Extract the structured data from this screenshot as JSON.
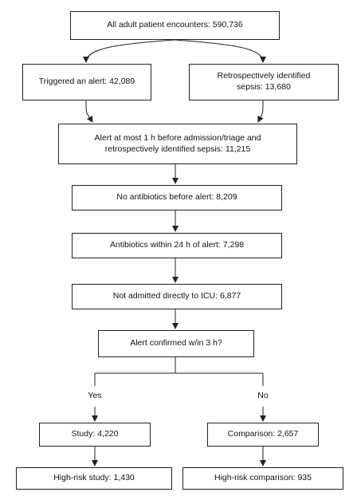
{
  "flowchart": {
    "all_encounters": "All adult patient encounters: 590,736",
    "triggered_alert": "Triggered an alert: 42,089",
    "retro_sepsis": "Retrospectively identified\nsepsis: 13,680",
    "alert_within_1h": "Alert at most 1 h before admission/triage and\nretrospectively identified sepsis: 11,215",
    "no_antibiotics": "No antibiotics before alert: 8,209",
    "antibiotics_24h": "Antibiotics within 24 h of alert: 7,298",
    "not_icu": "Not admitted directly to ICU: 6,877",
    "alert_confirmed": "Alert confirmed w/in 3 h?",
    "yes_label": "Yes",
    "no_label": "No",
    "study": "Study: 4,220",
    "comparison": "Comparison: 2,657",
    "high_risk_study": "High-risk study: 1,430",
    "high_risk_comparison": "High-risk comparison: 935"
  },
  "colors": {
    "line": "#222222",
    "box_border": "#222222",
    "background": "#ffffff"
  }
}
